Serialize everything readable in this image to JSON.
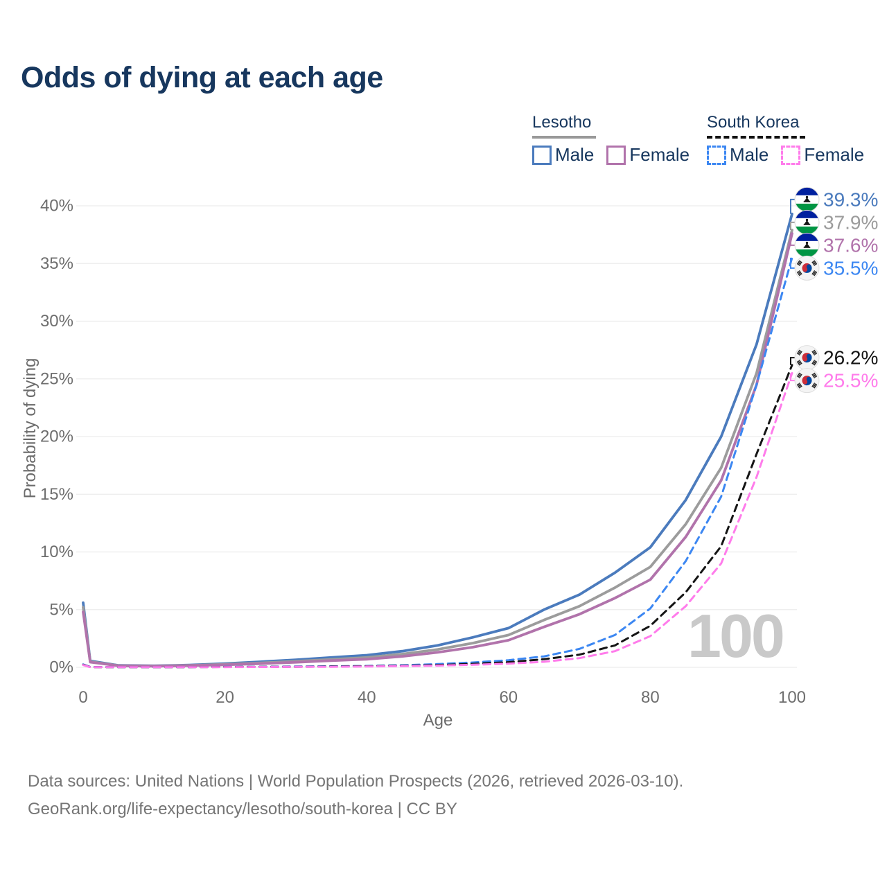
{
  "page": {
    "title": "Odds of dying at each age",
    "watermark": "100"
  },
  "legend": {
    "lesotho": {
      "title": "Lesotho",
      "male": "Male",
      "female": "Female"
    },
    "south_korea": {
      "title": "South Korea",
      "male": "Male",
      "female": "Female"
    }
  },
  "footer": {
    "line1": "Data sources: United Nations | World Population Prospects (2026, retrieved 2026-03-10).",
    "line2": "GeoRank.org/life-expectancy/lesotho/south-korea | CC BY"
  },
  "chart_data": {
    "type": "line",
    "title": "Odds of dying at each age",
    "xlabel": "Age",
    "ylabel": "Probability of dying",
    "unit": "%",
    "xlim": [
      0,
      100
    ],
    "ylim": [
      0,
      40
    ],
    "grid": true,
    "legend_position": "top-right",
    "xticks": {
      "values": [
        0,
        20,
        40,
        60,
        80,
        100
      ],
      "labels": [
        "0",
        "20",
        "40",
        "60",
        "80",
        "100"
      ]
    },
    "yticks": {
      "values": [
        0,
        5,
        10,
        15,
        20,
        25,
        30,
        35,
        40
      ],
      "labels": [
        "0%",
        "5%",
        "10%",
        "15%",
        "20%",
        "25%",
        "30%",
        "35%",
        "40%"
      ]
    },
    "x": [
      0,
      1,
      5,
      10,
      15,
      20,
      25,
      30,
      35,
      40,
      45,
      50,
      55,
      60,
      65,
      70,
      75,
      80,
      85,
      90,
      95,
      100
    ],
    "series": [
      {
        "id": "lesotho-male",
        "name": "Lesotho Male",
        "country": "Lesotho",
        "sex": "Male",
        "style": "solid",
        "color": "#4b7bbd",
        "flag": "lesotho",
        "end_label": "39.3%",
        "values": [
          5.6,
          0.55,
          0.17,
          0.13,
          0.2,
          0.32,
          0.48,
          0.65,
          0.85,
          1.05,
          1.4,
          1.9,
          2.6,
          3.4,
          5.0,
          6.3,
          8.2,
          10.4,
          14.5,
          20.0,
          28.0,
          39.3
        ]
      },
      {
        "id": "lesotho-total",
        "name": "Lesotho (both sexes)",
        "country": "Lesotho",
        "sex": "Both",
        "style": "solid",
        "color": "#9c9c9c",
        "flag": "lesotho",
        "end_label": "37.9%",
        "values": [
          5.2,
          0.5,
          0.15,
          0.11,
          0.17,
          0.26,
          0.38,
          0.52,
          0.68,
          0.85,
          1.15,
          1.55,
          2.1,
          2.8,
          4.1,
          5.3,
          6.9,
          8.7,
          12.4,
          17.3,
          25.5,
          37.9
        ]
      },
      {
        "id": "lesotho-female",
        "name": "Lesotho Female",
        "country": "Lesotho",
        "sex": "Female",
        "style": "solid",
        "color": "#b173ab",
        "flag": "lesotho",
        "end_label": "37.6%",
        "values": [
          4.8,
          0.45,
          0.13,
          0.1,
          0.15,
          0.22,
          0.32,
          0.44,
          0.58,
          0.7,
          0.95,
          1.3,
          1.75,
          2.35,
          3.5,
          4.6,
          6.0,
          7.6,
          11.3,
          16.2,
          24.5,
          37.6
        ]
      },
      {
        "id": "south-korea-male",
        "name": "South Korea Male",
        "country": "South Korea",
        "sex": "Male",
        "style": "dashed",
        "color": "#3c87f2",
        "flag": "south-korea",
        "end_label": "35.5%",
        "values": [
          0.25,
          0.03,
          0.01,
          0.01,
          0.02,
          0.04,
          0.05,
          0.07,
          0.09,
          0.12,
          0.18,
          0.28,
          0.42,
          0.62,
          0.95,
          1.6,
          2.8,
          5.1,
          9.2,
          14.8,
          24.5,
          35.5
        ]
      },
      {
        "id": "south-korea-total",
        "name": "South Korea (both sexes)",
        "country": "South Korea",
        "sex": "Both",
        "style": "dashed",
        "color": "#151515",
        "flag": "south-korea",
        "end_label": "26.2%",
        "values": [
          0.22,
          0.02,
          0.01,
          0.01,
          0.02,
          0.03,
          0.04,
          0.05,
          0.07,
          0.09,
          0.13,
          0.2,
          0.3,
          0.45,
          0.7,
          1.1,
          1.9,
          3.6,
          6.5,
          10.5,
          18.5,
          26.2
        ]
      },
      {
        "id": "south-korea-female",
        "name": "South Korea Female",
        "country": "South Korea",
        "sex": "Female",
        "style": "dashed",
        "color": "#ff7ceb",
        "flag": "south-korea",
        "end_label": "25.5%",
        "values": [
          0.2,
          0.02,
          0.01,
          0.01,
          0.01,
          0.02,
          0.03,
          0.04,
          0.05,
          0.07,
          0.1,
          0.15,
          0.22,
          0.32,
          0.48,
          0.8,
          1.4,
          2.7,
          5.3,
          9.0,
          16.5,
          25.5
        ]
      }
    ]
  }
}
